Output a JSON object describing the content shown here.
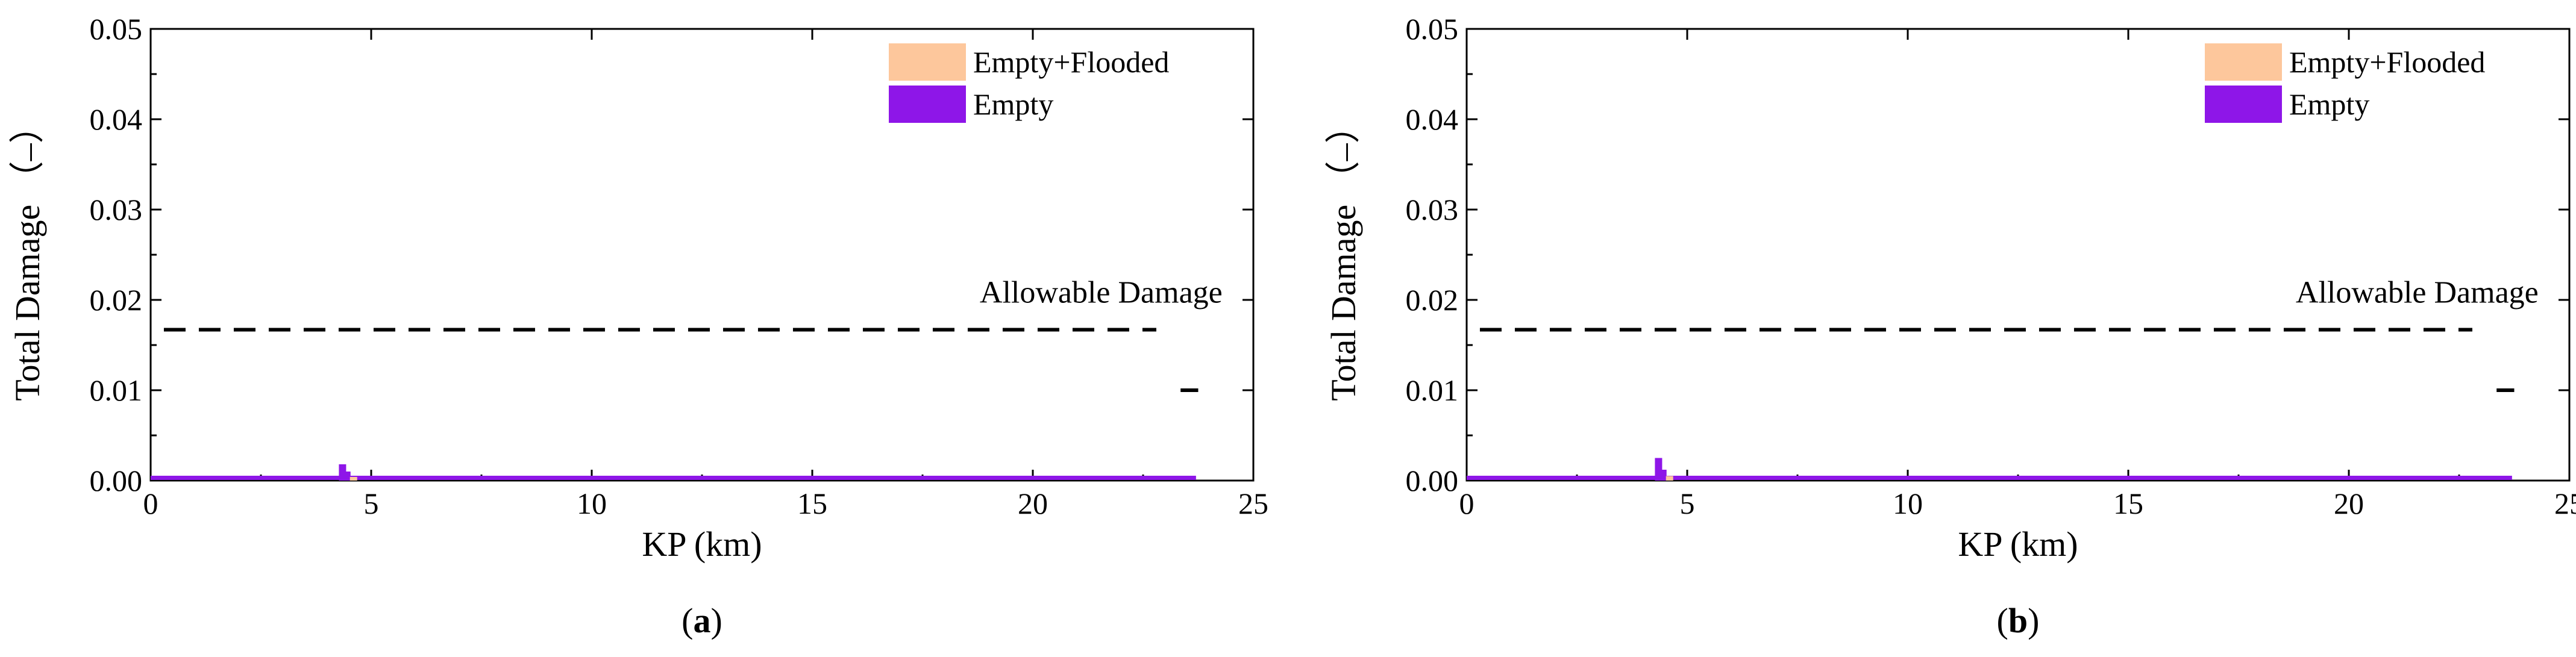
{
  "chart_data": [
    {
      "type": "bar",
      "panel_caption_letter": "a",
      "xlabel": "KP (km)",
      "ylabel": "Total Damage （–）",
      "xlim": [
        0,
        25
      ],
      "ylim": [
        0,
        0.05
      ],
      "xticks": [
        0,
        5,
        10,
        15,
        20,
        25
      ],
      "yticks": [
        "0.00",
        "0.01",
        "0.02",
        "0.03",
        "0.04",
        "0.05"
      ],
      "legend": {
        "placement": "top-right",
        "entries": [
          {
            "name": "Empty+Flooded",
            "color": "#FDC79C"
          },
          {
            "name": "Empty",
            "color": "#8E16E8"
          }
        ]
      },
      "allowable_damage": {
        "label": "Allowable Damage",
        "value": 0.0167
      },
      "stray_mark_y": 0.01,
      "x_extent": [
        0,
        23.7
      ],
      "baseline_value": 0.0003,
      "series": [
        {
          "name": "Empty",
          "color": "#8E16E8",
          "x": [
            4.35,
            4.45
          ],
          "values": [
            0.0018,
            0.001
          ]
        },
        {
          "name": "Empty+Flooded",
          "color": "#FDC79C",
          "x": [
            4.6
          ],
          "values": [
            0.0004
          ]
        }
      ]
    },
    {
      "type": "bar",
      "panel_caption_letter": "b",
      "xlabel": "KP (km)",
      "ylabel": "Total Damage （–）",
      "xlim": [
        0,
        25
      ],
      "ylim": [
        0,
        0.05
      ],
      "xticks": [
        0,
        5,
        10,
        15,
        20,
        25
      ],
      "yticks": [
        "0.00",
        "0.01",
        "0.02",
        "0.03",
        "0.04",
        "0.05"
      ],
      "legend": {
        "placement": "top-right",
        "entries": [
          {
            "name": "Empty+Flooded",
            "color": "#FDC79C"
          },
          {
            "name": "Empty",
            "color": "#8E16E8"
          }
        ]
      },
      "allowable_damage": {
        "label": "Allowable Damage",
        "value": 0.0167
      },
      "stray_mark_y": 0.01,
      "x_extent": [
        0,
        23.7
      ],
      "baseline_value": 0.0003,
      "series": [
        {
          "name": "Empty",
          "color": "#8E16E8",
          "x": [
            4.35,
            4.45
          ],
          "values": [
            0.0025,
            0.0012
          ]
        },
        {
          "name": "Empty+Flooded",
          "color": "#FDC79C",
          "x": [
            4.6
          ],
          "values": [
            0.0005
          ]
        }
      ]
    }
  ]
}
